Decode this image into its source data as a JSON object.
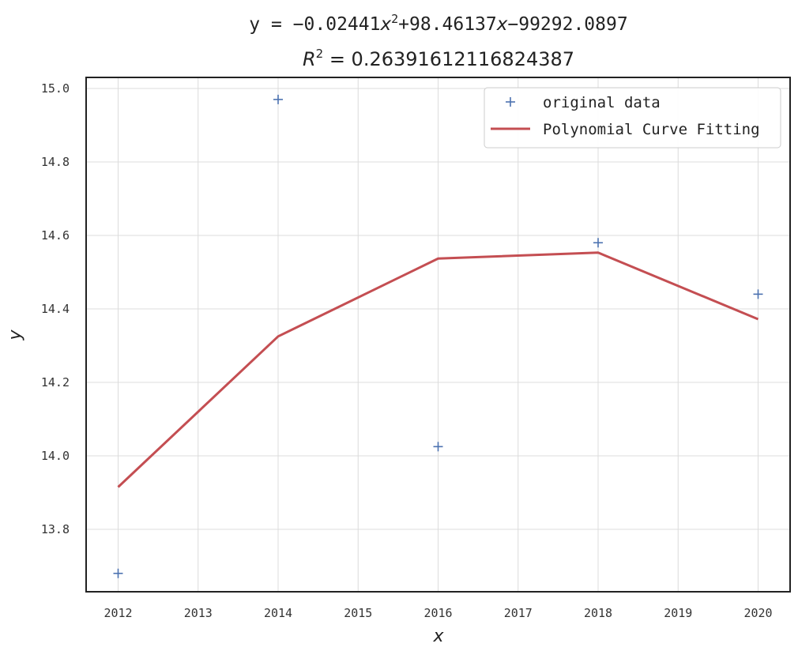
{
  "chart_data": {
    "type": "line",
    "title": {
      "prefix": "y = −0.02441",
      "var1": "x",
      "sup1": "2",
      "middle": "+98.46137",
      "var2": "x",
      "suffix": "−99292.0897"
    },
    "subtitle": {
      "var": "R",
      "sup": "2",
      "rest": " = 0.26391612116824387"
    },
    "xlabel": "x",
    "ylabel": "y",
    "xlim": [
      2011.6,
      2020.4
    ],
    "ylim": [
      13.63,
      15.03
    ],
    "x_ticks": [
      2012,
      2013,
      2014,
      2015,
      2016,
      2017,
      2018,
      2019,
      2020
    ],
    "x_tick_labels": [
      "2012",
      "2013",
      "2014",
      "2015",
      "2016",
      "2017",
      "2018",
      "2019",
      "2020"
    ],
    "y_ticks": [
      13.8,
      14.0,
      14.2,
      14.4,
      14.6,
      14.8,
      15.0
    ],
    "y_tick_labels": [
      "13.8",
      "14.0",
      "14.2",
      "14.4",
      "14.6",
      "14.8",
      "15.0"
    ],
    "grid": true,
    "legend_position": "top-right",
    "series": [
      {
        "name": "original data",
        "kind": "scatter",
        "marker": "plus",
        "color": "#4c72b0",
        "x": [
          2012,
          2014,
          2016,
          2018,
          2020
        ],
        "y": [
          13.68,
          14.97,
          14.025,
          14.58,
          14.44
        ]
      },
      {
        "name": "Polynomial Curve Fitting",
        "kind": "line",
        "color": "#c44e52",
        "x": [
          2012,
          2014,
          2016,
          2018,
          2020
        ],
        "y": [
          13.915,
          14.325,
          14.537,
          14.553,
          14.372
        ]
      }
    ]
  }
}
